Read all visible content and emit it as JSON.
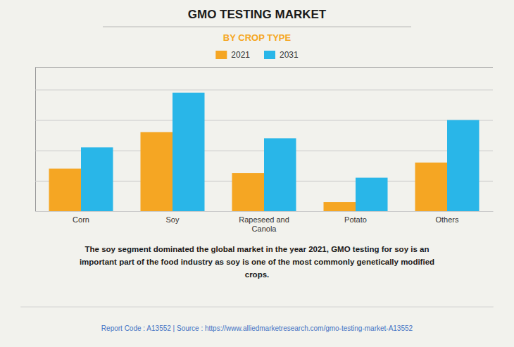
{
  "chart_data": {
    "type": "bar",
    "title": "GMO TESTING MARKET",
    "subtitle": "BY CROP TYPE",
    "categories": [
      "Corn",
      "Soy",
      "Rapeseed and\nCanola",
      "Potato",
      "Others"
    ],
    "series": [
      {
        "name": "2021",
        "color": "#F5A623",
        "values": [
          0.28,
          0.52,
          0.25,
          0.06,
          0.32
        ]
      },
      {
        "name": "2031",
        "color": "#29B6E8",
        "values": [
          0.42,
          0.78,
          0.48,
          0.22,
          0.6
        ]
      }
    ],
    "ylim": [
      0,
      0.95
    ],
    "yticks": [
      0,
      0.2,
      0.4,
      0.6,
      0.8
    ],
    "grid": true,
    "tick_labels": "x",
    "legend": "top",
    "annotations": [
      "The soy segment dominated the global market in the year 2021, GMO testing for soy is an\nimportant part of the food industry as soy is one of the most commonly genetically modified\ncrops.",
      "Report Code : A13552  |  Source : https://www.alliedmarketresearch.com/gmo-testing-market-A13552"
    ]
  }
}
